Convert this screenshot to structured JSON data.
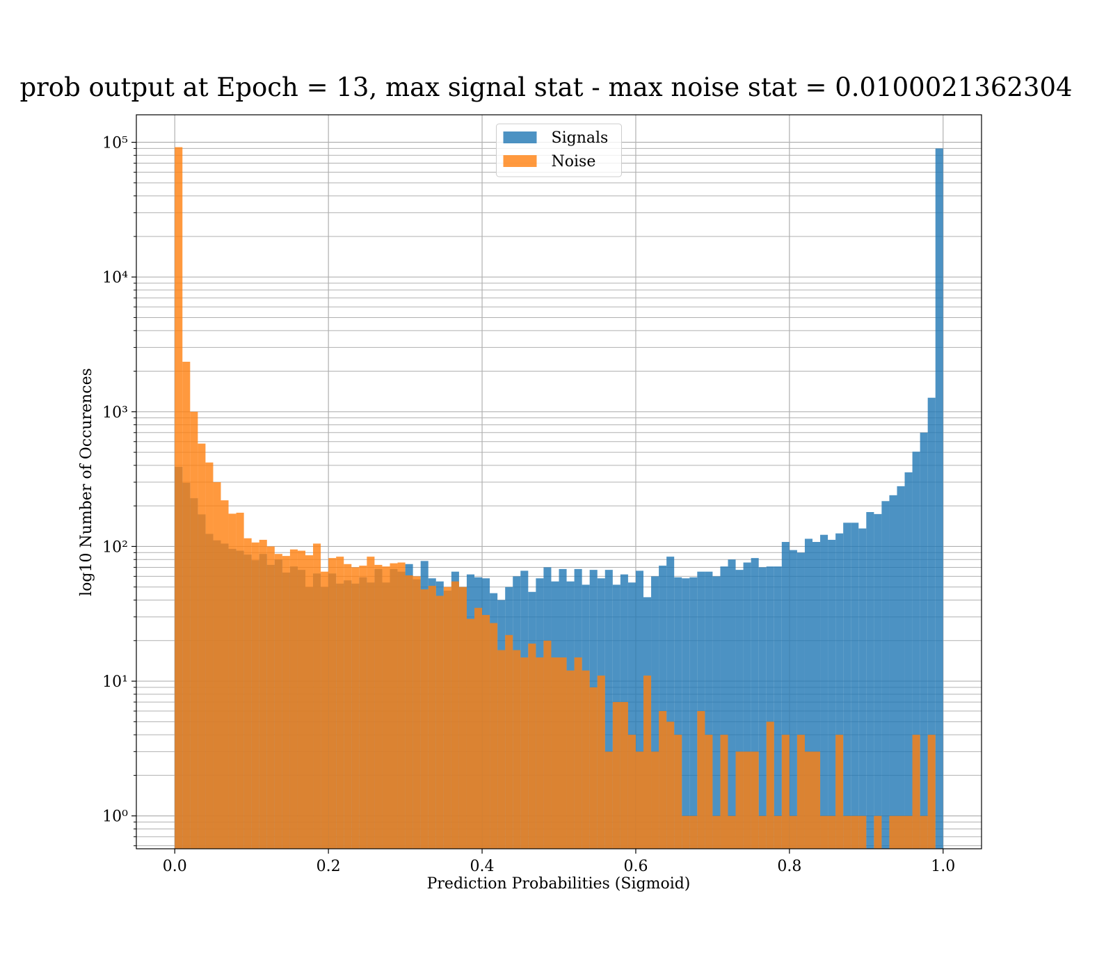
{
  "chart_data": {
    "type": "histogram",
    "title": "prob output at Epoch = 13, max signal stat - max noise stat = 0.0100021362304",
    "x_label": "Prediction Probabilities (Sigmoid)",
    "y_label": "log10 Number of Occurences",
    "bins": [
      0,
      0.01,
      0.02,
      0.03,
      0.04,
      0.05,
      0.06,
      0.07,
      0.08,
      0.09,
      0.1,
      0.11,
      0.12,
      0.13,
      0.14,
      0.15,
      0.16,
      0.17,
      0.18,
      0.19,
      0.2,
      0.21,
      0.22,
      0.23,
      0.24,
      0.25,
      0.26,
      0.27,
      0.28,
      0.29,
      0.3,
      0.31,
      0.32,
      0.33,
      0.34,
      0.35,
      0.36,
      0.37,
      0.38,
      0.39,
      0.4,
      0.41,
      0.42,
      0.43,
      0.44,
      0.45,
      0.46,
      0.47,
      0.48,
      0.49,
      0.5,
      0.51,
      0.52,
      0.53,
      0.54,
      0.55,
      0.56,
      0.57,
      0.58,
      0.59,
      0.6,
      0.61,
      0.62,
      0.63,
      0.64,
      0.65,
      0.66,
      0.67,
      0.68,
      0.69,
      0.7,
      0.71,
      0.72,
      0.73,
      0.74,
      0.75,
      0.76,
      0.77,
      0.78,
      0.79,
      0.8,
      0.81,
      0.82,
      0.83,
      0.84,
      0.85,
      0.86,
      0.87,
      0.88,
      0.89,
      0.9,
      0.91,
      0.92,
      0.93,
      0.94,
      0.95,
      0.96,
      0.97,
      0.98,
      0.99,
      1
    ],
    "series": [
      {
        "name": "Signals",
        "color": "#1f77b4",
        "values": [
          390,
          297,
          228,
          173,
          124,
          111,
          105,
          96,
          93,
          87,
          79,
          88,
          73,
          80,
          64,
          71,
          67,
          50,
          63,
          50,
          63,
          53,
          56,
          53,
          59,
          54,
          68,
          54,
          68,
          65,
          74,
          57,
          78,
          58,
          55,
          47,
          65,
          50,
          62,
          59,
          58,
          45,
          40,
          50,
          60,
          66,
          46,
          58,
          70,
          55,
          68,
          55,
          68,
          52,
          67,
          58,
          67,
          52,
          62,
          54,
          66,
          42,
          60,
          72,
          84,
          59,
          58,
          59,
          65,
          65,
          60,
          71,
          80,
          67,
          76,
          82,
          70,
          71,
          71,
          108,
          94,
          90,
          114,
          108,
          122,
          112,
          125,
          150,
          150,
          136,
          180,
          174,
          217,
          240,
          280,
          355,
          505,
          700,
          1270,
          90000
        ]
      },
      {
        "name": "Noise",
        "color": "#ff7f0e",
        "values": [
          92000,
          2350,
          1000,
          580,
          420,
          300,
          220,
          175,
          178,
          115,
          107,
          112,
          100,
          88,
          85,
          95,
          93,
          86,
          105,
          65,
          82,
          84,
          74,
          70,
          72,
          84,
          73,
          71,
          75,
          76,
          61,
          60,
          48,
          51,
          43,
          50,
          55,
          50,
          29,
          35,
          31,
          27,
          17,
          22,
          17,
          15,
          19,
          15,
          20,
          15,
          15,
          12,
          15,
          12,
          9,
          11,
          3,
          7,
          7,
          4,
          3,
          11,
          3,
          6,
          5,
          4,
          1,
          1,
          6,
          4,
          1,
          4,
          1,
          3,
          3,
          3,
          1,
          5,
          1,
          4,
          1,
          4,
          3,
          3,
          1,
          1,
          4,
          1,
          1,
          1,
          0,
          1,
          0,
          1,
          1,
          1,
          4,
          1,
          4,
          0
        ]
      }
    ],
    "alpha": 0.8,
    "xlim": [
      -0.05,
      1.05
    ],
    "ylim": [
      0.57,
      160000
    ],
    "log_y": true,
    "xticks": [
      {
        "value": 0,
        "label": "0.0"
      },
      0.2,
      0.4,
      0.6,
      0.8,
      {
        "value": 1,
        "label": "1.0"
      }
    ],
    "yticks": [
      {
        "value": 1,
        "label": "10⁰"
      },
      {
        "value": 10,
        "label": "10¹"
      },
      {
        "value": 100,
        "label": "10²"
      },
      {
        "value": 1000,
        "label": "10³"
      },
      {
        "value": 10000,
        "label": "10⁴"
      },
      {
        "value": 100000,
        "label": "10⁵"
      }
    ],
    "grid": true,
    "minor_grid": true,
    "legend": "upper center"
  }
}
